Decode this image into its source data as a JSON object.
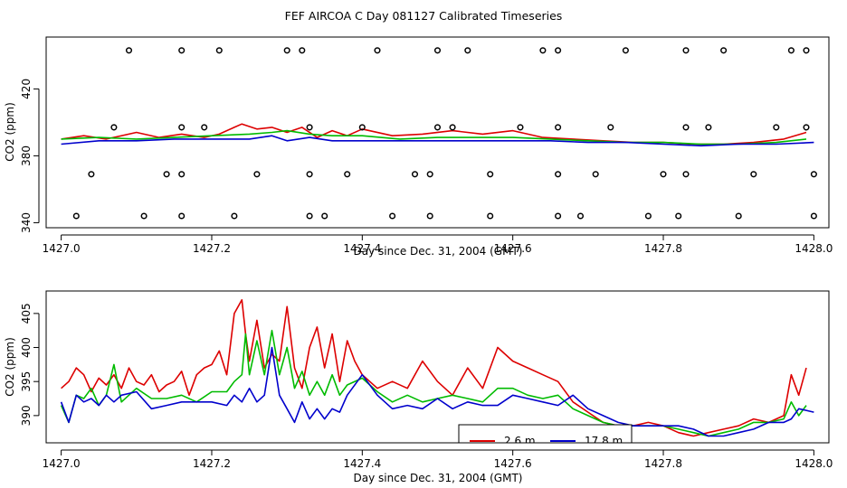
{
  "figure_title": "FEF AIRCOA C  Day 081127  Calibrated Timeseries",
  "colors": {
    "red": "#dd0000",
    "green": "#00bb00",
    "blue": "#0000cc"
  },
  "chart_data": [
    {
      "type": "line",
      "title": "",
      "xlabel": "Day since Dec. 31, 2004 (GMT)",
      "ylabel": "CO2 (ppm)",
      "xlim": [
        1426.98,
        1428.02
      ],
      "ylim": [
        337,
        451
      ],
      "x_ticks": [
        1427.0,
        1427.2,
        1427.4,
        1427.6,
        1427.8,
        1428.0
      ],
      "x_tick_labels": [
        "1427.0",
        "1427.2",
        "1427.4",
        "1427.6",
        "1427.8",
        "1428.0"
      ],
      "y_ticks": [
        340,
        380,
        420
      ],
      "y_tick_labels": [
        "340",
        "380",
        "420"
      ],
      "series": [
        {
          "name": "red",
          "color": "#dd0000",
          "x": [
            1427.0,
            1427.03,
            1427.06,
            1427.1,
            1427.13,
            1427.16,
            1427.19,
            1427.21,
            1427.23,
            1427.24,
            1427.26,
            1427.28,
            1427.3,
            1427.32,
            1427.34,
            1427.36,
            1427.38,
            1427.4,
            1427.44,
            1427.48,
            1427.52,
            1427.56,
            1427.6,
            1427.64,
            1427.68,
            1427.72,
            1427.76,
            1427.8,
            1427.84,
            1427.88,
            1427.92,
            1427.96,
            1427.99
          ],
          "values": [
            390,
            392,
            390,
            394,
            391,
            393,
            391,
            393,
            397,
            399,
            396,
            397,
            394,
            397,
            391,
            395,
            392,
            396,
            392,
            393,
            395,
            393,
            395,
            391,
            390,
            389,
            388,
            388,
            387,
            387,
            388,
            390,
            394
          ]
        },
        {
          "name": "green",
          "color": "#00bb00",
          "x": [
            1427.0,
            1427.05,
            1427.1,
            1427.15,
            1427.2,
            1427.25,
            1427.28,
            1427.3,
            1427.33,
            1427.36,
            1427.4,
            1427.45,
            1427.5,
            1427.55,
            1427.6,
            1427.65,
            1427.7,
            1427.75,
            1427.8,
            1427.85,
            1427.9,
            1427.95,
            1427.99
          ],
          "values": [
            390,
            391,
            390,
            391,
            392,
            393,
            394,
            395,
            393,
            392,
            392,
            390,
            391,
            391,
            391,
            390,
            389,
            388,
            388,
            387,
            387,
            388,
            390
          ]
        },
        {
          "name": "blue",
          "color": "#0000cc",
          "x": [
            1427.0,
            1427.05,
            1427.1,
            1427.15,
            1427.2,
            1427.25,
            1427.28,
            1427.3,
            1427.33,
            1427.36,
            1427.4,
            1427.45,
            1427.5,
            1427.55,
            1427.6,
            1427.65,
            1427.7,
            1427.75,
            1427.8,
            1427.85,
            1427.9,
            1427.95,
            1428.0
          ],
          "values": [
            387,
            389,
            389,
            390,
            390,
            390,
            392,
            389,
            391,
            389,
            389,
            389,
            389,
            389,
            389,
            389,
            388,
            388,
            387,
            386,
            387,
            387,
            388
          ]
        }
      ],
      "markers": {
        "name": "circles",
        "x": [
          1427.09,
          1427.16,
          1427.21,
          1427.3,
          1427.32,
          1427.42,
          1427.5,
          1427.54,
          1427.64,
          1427.66,
          1427.75,
          1427.83,
          1427.88,
          1427.97,
          1427.99,
          1427.07,
          1427.16,
          1427.19,
          1427.33,
          1427.4,
          1427.5,
          1427.52,
          1427.61,
          1427.66,
          1427.73,
          1427.83,
          1427.86,
          1427.95,
          1427.99,
          1427.04,
          1427.14,
          1427.16,
          1427.26,
          1427.33,
          1427.38,
          1427.47,
          1427.49,
          1427.57,
          1427.66,
          1427.71,
          1427.8,
          1427.83,
          1427.92,
          1428.0,
          1427.02,
          1427.11,
          1427.16,
          1427.23,
          1427.33,
          1427.35,
          1427.44,
          1427.49,
          1427.57,
          1427.66,
          1427.69,
          1427.78,
          1427.82,
          1427.9,
          1428.0
        ],
        "values": [
          443,
          443,
          443,
          443,
          443,
          443,
          443,
          443,
          443,
          443,
          443,
          443,
          443,
          443,
          443,
          397,
          397,
          397,
          397,
          397,
          397,
          397,
          397,
          397,
          397,
          397,
          397,
          397,
          397,
          369,
          369,
          369,
          369,
          369,
          369,
          369,
          369,
          369,
          369,
          369,
          369,
          369,
          369,
          369,
          344,
          344,
          344,
          344,
          344,
          344,
          344,
          344,
          344,
          344,
          344,
          344,
          344,
          344,
          344
        ]
      }
    },
    {
      "type": "line",
      "title": "",
      "xlabel": "Day since Dec. 31, 2004 (GMT)",
      "ylabel": "CO2 (ppm)",
      "xlim": [
        1426.98,
        1428.02
      ],
      "ylim": [
        386.0,
        408.3
      ],
      "x_ticks": [
        1427.0,
        1427.2,
        1427.4,
        1427.6,
        1427.8,
        1428.0
      ],
      "x_tick_labels": [
        "1427.0",
        "1427.2",
        "1427.4",
        "1427.6",
        "1427.8",
        "1428.0"
      ],
      "y_ticks": [
        390,
        395,
        400,
        405
      ],
      "y_tick_labels": [
        "390",
        "395",
        "400",
        "405"
      ],
      "legend": {
        "entries": [
          "2.6 m",
          "17.8 m"
        ],
        "placement": "bottom-center"
      },
      "series": [
        {
          "name": "2.6 m",
          "color": "#dd0000",
          "x": [
            1427.0,
            1427.01,
            1427.02,
            1427.03,
            1427.04,
            1427.05,
            1427.06,
            1427.07,
            1427.08,
            1427.09,
            1427.1,
            1427.11,
            1427.12,
            1427.13,
            1427.14,
            1427.15,
            1427.16,
            1427.17,
            1427.18,
            1427.19,
            1427.2,
            1427.21,
            1427.22,
            1427.23,
            1427.24,
            1427.245,
            1427.25,
            1427.26,
            1427.27,
            1427.28,
            1427.29,
            1427.3,
            1427.31,
            1427.32,
            1427.33,
            1427.34,
            1427.35,
            1427.36,
            1427.37,
            1427.38,
            1427.39,
            1427.4,
            1427.42,
            1427.44,
            1427.46,
            1427.48,
            1427.5,
            1427.52,
            1427.54,
            1427.56,
            1427.58,
            1427.6,
            1427.62,
            1427.64,
            1427.66,
            1427.68,
            1427.7,
            1427.72,
            1427.74,
            1427.76,
            1427.78,
            1427.8,
            1427.82,
            1427.84,
            1427.86,
            1427.88,
            1427.9,
            1427.92,
            1427.94,
            1427.96,
            1427.97,
            1427.98,
            1427.99
          ],
          "values": [
            394.0,
            395.0,
            397.0,
            396.0,
            393.5,
            395.5,
            394.5,
            396.0,
            394.0,
            397.0,
            395.0,
            394.5,
            396.0,
            393.5,
            394.5,
            395.0,
            396.5,
            393.0,
            396.0,
            397.0,
            397.5,
            399.5,
            396.0,
            405.0,
            407.0,
            402.0,
            398.0,
            404.0,
            397.0,
            399.0,
            398.0,
            406.0,
            397.0,
            394.0,
            400.0,
            403.0,
            397.0,
            402.0,
            395.0,
            401.0,
            398.0,
            396.0,
            394.0,
            395.0,
            394.0,
            398.0,
            395.0,
            393.0,
            397.0,
            394.0,
            400.0,
            398.0,
            397.0,
            396.0,
            395.0,
            392.0,
            390.5,
            389.0,
            388.5,
            388.5,
            389.0,
            388.5,
            387.5,
            387.0,
            387.5,
            388.0,
            388.5,
            389.5,
            389.0,
            390.0,
            396.0,
            393.0,
            397.0
          ]
        },
        {
          "name": "green",
          "color": "#00bb00",
          "x": [
            1427.0,
            1427.01,
            1427.02,
            1427.03,
            1427.04,
            1427.05,
            1427.06,
            1427.07,
            1427.08,
            1427.1,
            1427.12,
            1427.14,
            1427.16,
            1427.18,
            1427.2,
            1427.22,
            1427.23,
            1427.24,
            1427.245,
            1427.25,
            1427.26,
            1427.27,
            1427.28,
            1427.29,
            1427.3,
            1427.31,
            1427.32,
            1427.33,
            1427.34,
            1427.35,
            1427.36,
            1427.37,
            1427.38,
            1427.4,
            1427.42,
            1427.44,
            1427.46,
            1427.48,
            1427.5,
            1427.52,
            1427.54,
            1427.56,
            1427.58,
            1427.6,
            1427.62,
            1427.64,
            1427.66,
            1427.68,
            1427.7,
            1427.72,
            1427.74,
            1427.76,
            1427.78,
            1427.8,
            1427.82,
            1427.84,
            1427.86,
            1427.88,
            1427.9,
            1427.92,
            1427.94,
            1427.96,
            1427.97,
            1427.98,
            1427.99
          ],
          "values": [
            391.5,
            389.0,
            393.0,
            392.5,
            394.0,
            391.5,
            393.0,
            397.5,
            392.0,
            394.0,
            392.5,
            392.5,
            393.0,
            392.0,
            393.5,
            393.5,
            395.0,
            396.0,
            402.0,
            396.0,
            401.0,
            396.0,
            402.5,
            396.0,
            400.0,
            394.0,
            396.5,
            393.0,
            395.0,
            393.0,
            396.0,
            393.0,
            394.5,
            395.5,
            393.5,
            392.0,
            393.0,
            392.0,
            392.5,
            393.0,
            392.5,
            392.0,
            394.0,
            394.0,
            393.0,
            392.5,
            393.0,
            391.0,
            390.0,
            389.0,
            388.5,
            388.5,
            388.5,
            388.5,
            388.0,
            387.5,
            387.0,
            387.5,
            388.0,
            389.0,
            389.0,
            389.5,
            392.0,
            390.0,
            391.5
          ]
        },
        {
          "name": "17.8 m",
          "color": "#0000cc",
          "x": [
            1427.0,
            1427.01,
            1427.02,
            1427.03,
            1427.04,
            1427.05,
            1427.06,
            1427.07,
            1427.08,
            1427.1,
            1427.12,
            1427.14,
            1427.16,
            1427.18,
            1427.2,
            1427.22,
            1427.23,
            1427.24,
            1427.25,
            1427.26,
            1427.27,
            1427.28,
            1427.29,
            1427.3,
            1427.31,
            1427.32,
            1427.33,
            1427.34,
            1427.35,
            1427.36,
            1427.37,
            1427.38,
            1427.4,
            1427.42,
            1427.44,
            1427.46,
            1427.48,
            1427.5,
            1427.52,
            1427.54,
            1427.56,
            1427.58,
            1427.6,
            1427.62,
            1427.64,
            1427.66,
            1427.68,
            1427.7,
            1427.72,
            1427.74,
            1427.76,
            1427.78,
            1427.8,
            1427.82,
            1427.84,
            1427.86,
            1427.88,
            1427.9,
            1427.92,
            1427.94,
            1427.96,
            1427.97,
            1427.98,
            1428.0
          ],
          "values": [
            392.0,
            389.0,
            393.0,
            392.0,
            392.5,
            391.5,
            393.0,
            392.0,
            393.0,
            393.5,
            391.0,
            391.5,
            392.0,
            392.0,
            392.0,
            391.5,
            393.0,
            392.0,
            394.0,
            392.0,
            393.0,
            400.0,
            393.0,
            391.0,
            389.0,
            392.0,
            389.5,
            391.0,
            389.5,
            391.0,
            390.5,
            393.0,
            396.0,
            393.0,
            391.0,
            391.5,
            391.0,
            392.5,
            391.0,
            392.0,
            391.5,
            391.5,
            393.0,
            392.5,
            392.0,
            391.5,
            393.0,
            391.0,
            390.0,
            389.0,
            388.5,
            388.5,
            388.5,
            388.5,
            388.0,
            387.0,
            387.0,
            387.5,
            388.0,
            389.0,
            389.0,
            389.5,
            391.0,
            390.5
          ]
        }
      ]
    }
  ]
}
